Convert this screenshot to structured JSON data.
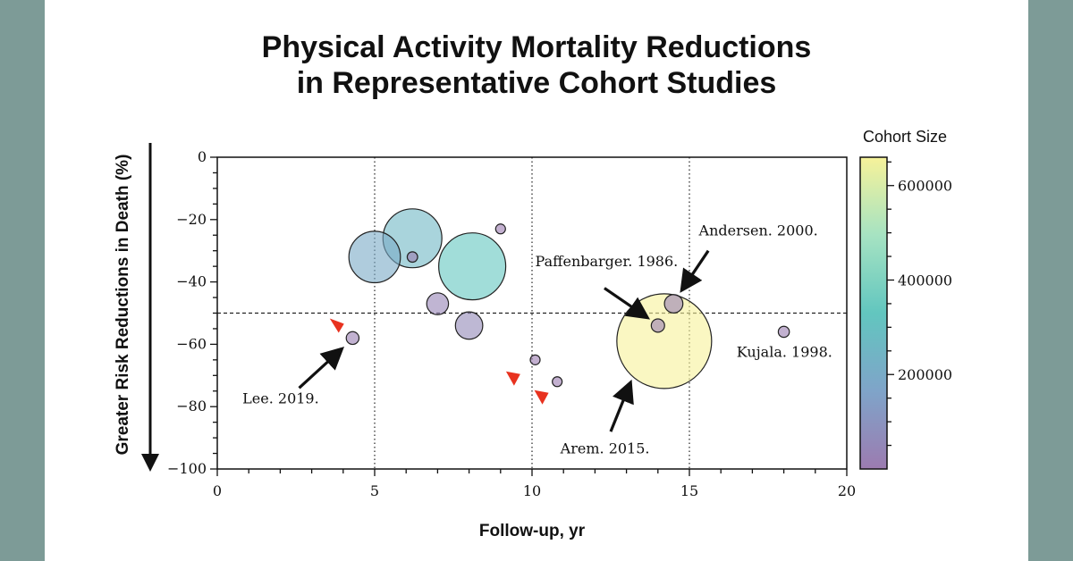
{
  "chart_data": {
    "type": "scatter",
    "title": [
      "Physical Activity Mortality Reductions",
      "in Representative Cohort Studies"
    ],
    "xlabel": "Follow-up, yr",
    "ylabel": "Greater Risk Reductions in Death (%)",
    "xlim": [
      0,
      20
    ],
    "ylim": [
      -100,
      0
    ],
    "x_ticks": [
      0,
      5,
      10,
      15,
      20
    ],
    "y_ticks": [
      0,
      -20,
      -40,
      -60,
      -80,
      -100
    ],
    "x_tick_labels": [
      "0",
      "5",
      "10",
      "15",
      "20"
    ],
    "y_tick_labels": [
      "0",
      "−20",
      "−40",
      "−60",
      "−80",
      "−100"
    ],
    "vertical_gridlines_dotted": [
      5,
      10,
      15
    ],
    "reference_line_y": -50,
    "size_encoding": "Cohort Size",
    "colorbar": {
      "title": "Cohort Size",
      "min": 0,
      "max": 660000,
      "ticks": [
        200000,
        400000,
        600000
      ],
      "tick_labels": [
        "200000",
        "400000",
        "600000"
      ],
      "colors": [
        "#9c7bb0",
        "#7fa4c9",
        "#62c6bf",
        "#a6e3c2",
        "#f6f29a"
      ]
    },
    "points": [
      {
        "x": 4.3,
        "y": -58,
        "size": 12000
      },
      {
        "x": 5.0,
        "y": -32,
        "size": 195000
      },
      {
        "x": 6.2,
        "y": -26,
        "size": 255000
      },
      {
        "x": 6.2,
        "y": -32,
        "size": 8000
      },
      {
        "x": 7.0,
        "y": -47,
        "size": 35000
      },
      {
        "x": 8.0,
        "y": -54,
        "size": 55000
      },
      {
        "x": 8.1,
        "y": -35,
        "size": 330000
      },
      {
        "x": 9.0,
        "y": -23,
        "size": 6000
      },
      {
        "x": 10.1,
        "y": -65,
        "size": 5000
      },
      {
        "x": 10.8,
        "y": -72,
        "size": 6000
      },
      {
        "x": 14.0,
        "y": -54,
        "size": 13000
      },
      {
        "x": 14.2,
        "y": -59,
        "size": 660000
      },
      {
        "x": 14.5,
        "y": -47,
        "size": 25000
      },
      {
        "x": 18.0,
        "y": -56,
        "size": 9000
      }
    ],
    "annotations": [
      {
        "label": "Lee. 2019.",
        "text_x": 0.8,
        "text_y": -79,
        "arrow_from": [
          2.6,
          -74
        ],
        "arrow_to": [
          3.9,
          -62
        ]
      },
      {
        "label": "Paffenbarger. 1986.",
        "text_x": 10.1,
        "text_y": -35,
        "arrow_from": [
          12.3,
          -42
        ],
        "arrow_to": [
          13.6,
          -51
        ]
      },
      {
        "label": "Andersen. 2000.",
        "text_x": 15.3,
        "text_y": -25,
        "arrow_from": [
          15.6,
          -30
        ],
        "arrow_to": [
          14.8,
          -42
        ]
      },
      {
        "label": "Kujala. 1998.",
        "text_x": 16.5,
        "text_y": -64,
        "arrow_from": null,
        "arrow_to": null
      },
      {
        "label": "Arem. 2015.",
        "text_x": 10.9,
        "text_y": -95,
        "arrow_from": [
          12.5,
          -88
        ],
        "arrow_to": [
          13.1,
          -73
        ]
      }
    ],
    "red_triangle_markers": [
      {
        "x": 3.8,
        "y": -54,
        "pointing": "down-right"
      },
      {
        "x": 9.4,
        "y": -71,
        "pointing": "right"
      },
      {
        "x": 10.3,
        "y": -77,
        "pointing": "right"
      }
    ],
    "left_arrow_meaning": "Greater Risk Reductions in Death (%)"
  }
}
